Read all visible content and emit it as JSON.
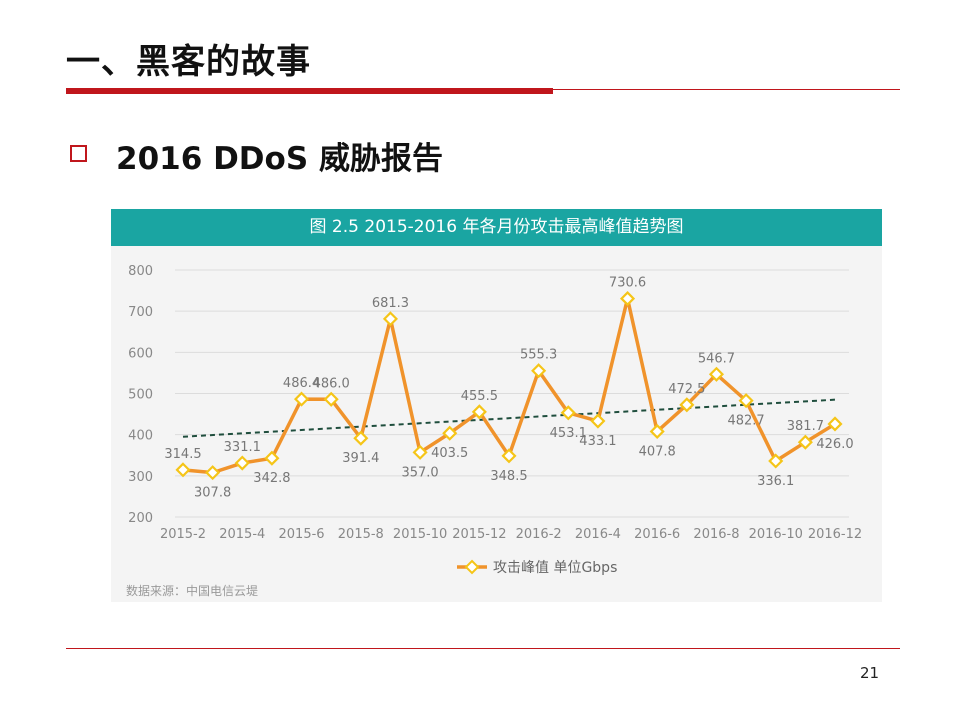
{
  "slide": {
    "title": "一、黑客的故事",
    "subtitle": "2016 DDoS 威胁报告",
    "page_number": "21"
  },
  "colors": {
    "accent_red": "#c0161c",
    "header_teal": "#1aa5a2",
    "series_orange": "#f0932b",
    "marker_fill": "#ffffff",
    "marker_stroke": "#f5c518",
    "trend": "#1f4e3d"
  },
  "chart_data": {
    "type": "line",
    "title": "图 2.5 2015-2016 年各月份攻击最高峰值趋势图",
    "source_note": "数据来源：中国电信云堤",
    "x": [
      "2015-2",
      "2015-3",
      "2015-4",
      "2015-5",
      "2015-6",
      "2015-7",
      "2015-8",
      "2015-9",
      "2015-10",
      "2015-11",
      "2015-12",
      "2016-1",
      "2016-2",
      "2016-3",
      "2016-4",
      "2016-5",
      "2016-6",
      "2016-7",
      "2016-8",
      "2016-9",
      "2016-10",
      "2016-11",
      "2016-12"
    ],
    "x_tick_labels": [
      "2015-2",
      "2015-4",
      "2015-6",
      "2015-8",
      "2015-10",
      "2015-12",
      "2016-2",
      "2016-4",
      "2016-6",
      "2016-8",
      "2016-10",
      "2016-12"
    ],
    "y_ticks": [
      200,
      300,
      400,
      500,
      600,
      700,
      800
    ],
    "ylim": [
      200,
      800
    ],
    "grid": true,
    "legend_position": "bottom",
    "series": [
      {
        "name": "攻击峰值 单位Gbps",
        "values": [
          314.5,
          307.8,
          331.1,
          342.8,
          486.4,
          486.0,
          391.4,
          681.3,
          357.0,
          403.5,
          455.5,
          348.5,
          555.3,
          453.1,
          433.1,
          730.6,
          407.8,
          472.5,
          546.7,
          482.7,
          336.1,
          381.7,
          426.0
        ],
        "labels": [
          "314.5",
          "307.8",
          "331.1",
          "342.8",
          "486.4",
          "486.0",
          "391.4",
          "681.3",
          "357.0",
          "403.5",
          "455.5",
          "348.5",
          "555.3",
          "453.1",
          "433.1",
          "730.6",
          "407.8",
          "472.5",
          "546.7",
          "482.7",
          "336.1",
          "381.7",
          "426.0"
        ],
        "label_side": [
          "top",
          "bottom",
          "top",
          "bottom",
          "top",
          "top",
          "bottom",
          "top",
          "bottom",
          "bottom",
          "top",
          "bottom",
          "top",
          "bottom",
          "bottom",
          "top",
          "bottom",
          "top",
          "top",
          "bottom",
          "bottom",
          "top",
          "bottom"
        ],
        "labeled": [
          true,
          true,
          true,
          true,
          true,
          true,
          true,
          true,
          true,
          true,
          true,
          true,
          true,
          true,
          true,
          true,
          true,
          true,
          true,
          true,
          true,
          true,
          true
        ]
      }
    ],
    "trendline": {
      "style": "dashed",
      "from": 395,
      "to": 485
    }
  }
}
